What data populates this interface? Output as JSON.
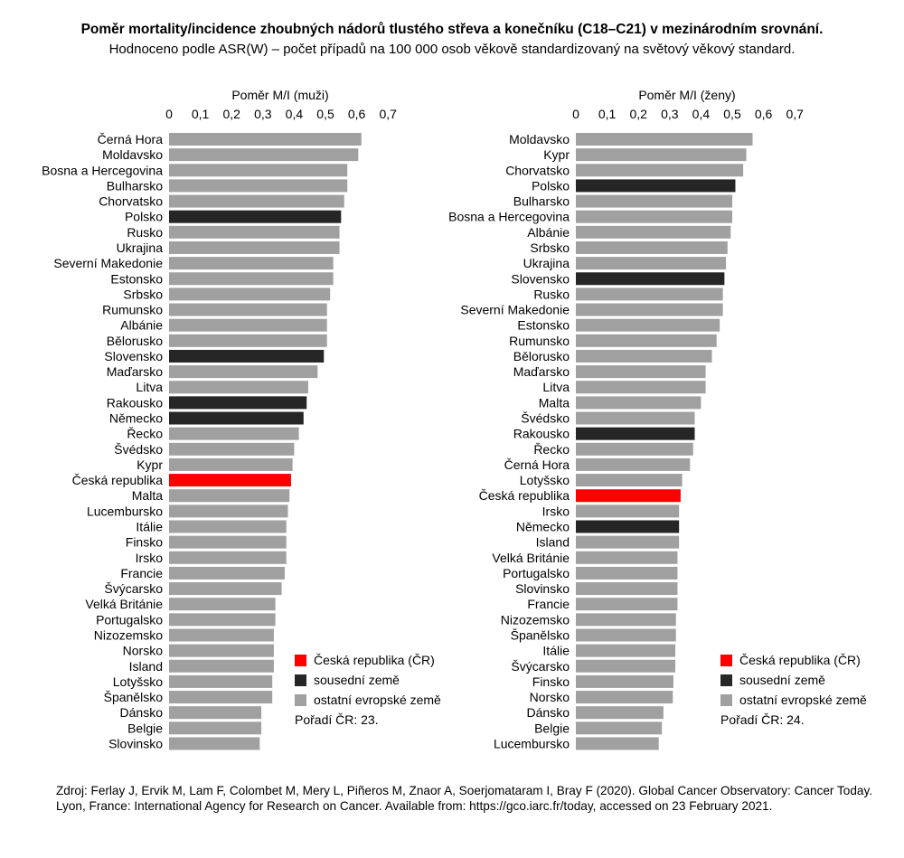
{
  "title": "Poměr mortality/incidence zhoubných nádorů tlustého střeva a konečníku (C18–C21) v mezinárodním srovnání.",
  "subtitle": "Hodnoceno podle ASR(W) – počet případů na 100 000 osob věkově standardizovaný na světový věkový standard.",
  "colors": {
    "czech": "#ff0000",
    "neighbor": "#262626",
    "other": "#a0a0a0"
  },
  "legend_items": [
    {
      "key": "czech",
      "label": "Česká republika (ČR)"
    },
    {
      "key": "neighbor",
      "label": "sousední země"
    },
    {
      "key": "other",
      "label": "ostatní evropské země"
    }
  ],
  "source": "Zdroj: Ferlay J, Ervik M, Lam F, Colombet M, Mery L, Piñeros M, Znaor A, Soerjomataram I, Bray F (2020). Global Cancer Observatory: Cancer Today. Lyon, France: International Agency for Research on Cancer. Available from: https://gco.iarc.fr/today, accessed on 23 February 2021.",
  "chart_data": [
    {
      "type": "bar",
      "orientation": "horizontal",
      "xlabel": "Poměr M/I (muži)",
      "xlim": [
        0,
        0.7
      ],
      "ticks": [
        "0",
        "0,1",
        "0,2",
        "0,3",
        "0,4",
        "0,5",
        "0,6",
        "0,7"
      ],
      "rank_label": "Pořadí ČR: 23.",
      "categories": [
        "Černá Hora",
        "Moldavsko",
        "Bosna a Hercegovina",
        "Bulharsko",
        "Chorvatsko",
        "Polsko",
        "Rusko",
        "Ukrajina",
        "Severní Makedonie",
        "Estonsko",
        "Srbsko",
        "Rumunsko",
        "Albánie",
        "Bělorusko",
        "Slovensko",
        "Maďarsko",
        "Litva",
        "Rakousko",
        "Německo",
        "Řecko",
        "Švédsko",
        "Kypr",
        "Česká republika",
        "Malta",
        "Lucembursko",
        "Itálie",
        "Finsko",
        "Irsko",
        "Francie",
        "Švýcarsko",
        "Velká Británie",
        "Portugalsko",
        "Nizozemsko",
        "Norsko",
        "Island",
        "Lotyšsko",
        "Španělsko",
        "Dánsko",
        "Belgie",
        "Slovinsko"
      ],
      "values": [
        0.615,
        0.605,
        0.57,
        0.57,
        0.56,
        0.55,
        0.545,
        0.545,
        0.525,
        0.525,
        0.515,
        0.505,
        0.505,
        0.505,
        0.495,
        0.475,
        0.445,
        0.44,
        0.43,
        0.415,
        0.4,
        0.395,
        0.39,
        0.385,
        0.38,
        0.375,
        0.375,
        0.375,
        0.37,
        0.36,
        0.34,
        0.34,
        0.335,
        0.335,
        0.335,
        0.33,
        0.33,
        0.295,
        0.295,
        0.29
      ],
      "groups": [
        "other",
        "other",
        "other",
        "other",
        "other",
        "neighbor",
        "other",
        "other",
        "other",
        "other",
        "other",
        "other",
        "other",
        "other",
        "neighbor",
        "other",
        "other",
        "neighbor",
        "neighbor",
        "other",
        "other",
        "other",
        "czech",
        "other",
        "other",
        "other",
        "other",
        "other",
        "other",
        "other",
        "other",
        "other",
        "other",
        "other",
        "other",
        "other",
        "other",
        "other",
        "other",
        "other"
      ]
    },
    {
      "type": "bar",
      "orientation": "horizontal",
      "xlabel": "Poměr M/I (ženy)",
      "xlim": [
        0,
        0.7
      ],
      "ticks": [
        "0",
        "0,1",
        "0,2",
        "0,3",
        "0,4",
        "0,5",
        "0,6",
        "0,7"
      ],
      "rank_label": "Pořadí ČR: 24.",
      "categories": [
        "Moldavsko",
        "Kypr",
        "Chorvatsko",
        "Polsko",
        "Bulharsko",
        "Bosna a Hercegovina",
        "Albánie",
        "Srbsko",
        "Ukrajina",
        "Slovensko",
        "Rusko",
        "Severní Makedonie",
        "Estonsko",
        "Rumunsko",
        "Bělorusko",
        "Maďarsko",
        "Litva",
        "Malta",
        "Švédsko",
        "Rakousko",
        "Řecko",
        "Černá Hora",
        "Lotyšsko",
        "Česká republika",
        "Irsko",
        "Německo",
        "Island",
        "Velká Británie",
        "Portugalsko",
        "Slovinsko",
        "Francie",
        "Nizozemsko",
        "Španělsko",
        "Itálie",
        "Švýcarsko",
        "Finsko",
        "Norsko",
        "Dánsko",
        "Belgie",
        "Lucembursko"
      ],
      "values": [
        0.565,
        0.545,
        0.535,
        0.51,
        0.5,
        0.5,
        0.495,
        0.485,
        0.48,
        0.475,
        0.47,
        0.47,
        0.46,
        0.45,
        0.435,
        0.415,
        0.415,
        0.4,
        0.38,
        0.38,
        0.375,
        0.365,
        0.34,
        0.335,
        0.33,
        0.33,
        0.33,
        0.325,
        0.325,
        0.325,
        0.325,
        0.32,
        0.32,
        0.318,
        0.318,
        0.312,
        0.31,
        0.28,
        0.275,
        0.265
      ],
      "groups": [
        "other",
        "other",
        "other",
        "neighbor",
        "other",
        "other",
        "other",
        "other",
        "other",
        "neighbor",
        "other",
        "other",
        "other",
        "other",
        "other",
        "other",
        "other",
        "other",
        "other",
        "neighbor",
        "other",
        "other",
        "other",
        "czech",
        "other",
        "neighbor",
        "other",
        "other",
        "other",
        "other",
        "other",
        "other",
        "other",
        "other",
        "other",
        "other",
        "other",
        "other",
        "other",
        "other"
      ]
    }
  ]
}
